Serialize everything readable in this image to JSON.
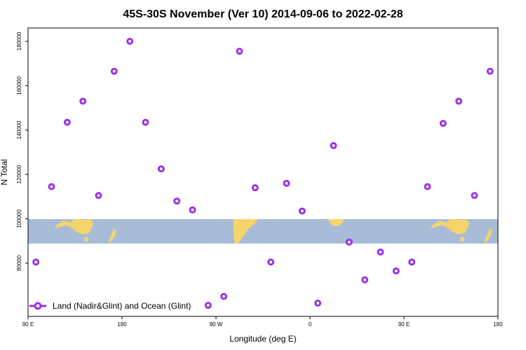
{
  "colors": {
    "marker": "#9b30e8",
    "ocean": "#a8bcd8",
    "land": "#f5d56b",
    "frame": "#000000"
  },
  "chart_data": {
    "type": "scatter",
    "title": "45S-30S November (Ver 10)   2014-09-06 to 2022-02-28",
    "xlabel": "Longitude (deg E)",
    "ylabel": "N Total",
    "x_ticks": [
      {
        "value": 0,
        "label": "90 E"
      },
      {
        "value": 90,
        "label": "180"
      },
      {
        "value": 180,
        "label": "90 W"
      },
      {
        "value": 270,
        "label": "0"
      },
      {
        "value": 360,
        "label": "90 E"
      },
      {
        "value": 450,
        "label": "180"
      }
    ],
    "y_ticks": [
      80000,
      100000,
      120000,
      140000,
      160000,
      180000
    ],
    "xlim": [
      0,
      450
    ],
    "ylim": [
      56000,
      186000
    ],
    "legend": {
      "label": "Land (Nadir&Glint) and Ocean (Glint)",
      "position": "bottom-left"
    },
    "series": [
      {
        "name": "Land (Nadir&Glint) and Ocean (Glint)",
        "x": [
          7.5,
          22.5,
          37.5,
          52.5,
          67.5,
          82.5,
          97.5,
          112.5,
          127.5,
          142.5,
          157.5,
          172.5,
          187.5,
          202.5,
          217.5,
          232.5,
          247.5,
          262.5,
          277.5,
          292.5,
          307.5,
          322.5,
          337.5,
          352.5,
          367.5,
          382.5,
          397.5,
          412.5,
          427.5,
          442.5
        ],
        "y": [
          80500,
          114500,
          143500,
          153000,
          110500,
          166500,
          180000,
          143500,
          122500,
          108000,
          104000,
          61000,
          65000,
          175500,
          114000,
          80500,
          116000,
          103500,
          62000,
          133000,
          89500,
          72500,
          85000,
          76500,
          80500,
          114500,
          143000,
          153000,
          110500,
          166500
        ]
      }
    ],
    "background_map": {
      "description": "world map strip 45S-30S",
      "lat_range": [
        "45S",
        "30S"
      ]
    }
  }
}
